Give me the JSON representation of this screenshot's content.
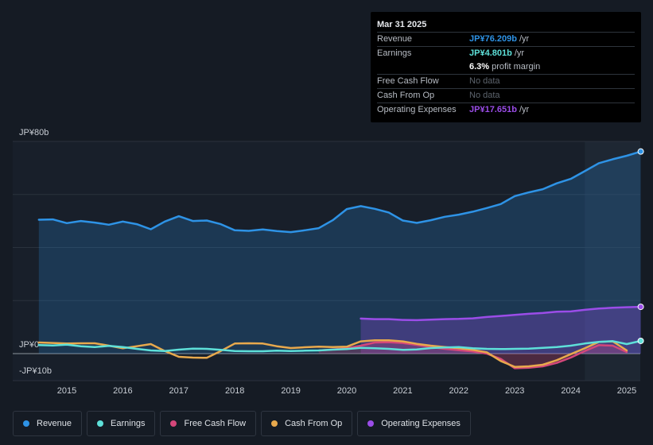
{
  "tooltip": {
    "date": "Mar 31 2025",
    "rows": [
      {
        "label": "Revenue",
        "value": "JP¥76.209b",
        "unit": "/yr",
        "color": "#2e93e6"
      },
      {
        "label": "Earnings",
        "value": "JP¥4.801b",
        "unit": "/yr",
        "color": "#5ee0d9"
      },
      {
        "label": "",
        "value": "6.3%",
        "unit": "profit margin",
        "color": "#ffffff"
      },
      {
        "label": "Free Cash Flow",
        "value": "No data",
        "unit": "",
        "color": "#5d646d"
      },
      {
        "label": "Cash From Op",
        "value": "No data",
        "unit": "",
        "color": "#5d646d"
      },
      {
        "label": "Operating Expenses",
        "value": "JP¥17.651b",
        "unit": "/yr",
        "color": "#9b4de8"
      }
    ]
  },
  "legend": [
    {
      "label": "Revenue",
      "color": "#2e93e6"
    },
    {
      "label": "Earnings",
      "color": "#5ee0d9"
    },
    {
      "label": "Free Cash Flow",
      "color": "#d4477a"
    },
    {
      "label": "Cash From Op",
      "color": "#e8a94d"
    },
    {
      "label": "Operating Expenses",
      "color": "#9b4de8"
    }
  ],
  "chart_data": {
    "type": "line",
    "title": "",
    "xlabel": "",
    "ylabel": "",
    "ylim": [
      -10,
      80
    ],
    "xlim": [
      2014.5,
      2025.25
    ],
    "y_tick_labels": [
      {
        "value": 80,
        "label": "JP¥80b"
      },
      {
        "value": 0,
        "label": "JP¥0"
      },
      {
        "value": -10,
        "label": "-JP¥10b"
      }
    ],
    "x_ticks": [
      2015,
      2016,
      2017,
      2018,
      2019,
      2020,
      2021,
      2022,
      2023,
      2024,
      2025
    ],
    "x_tick_labels": [
      "2015",
      "2016",
      "2017",
      "2018",
      "2019",
      "2020",
      "2021",
      "2022",
      "2023",
      "2024",
      "2025"
    ],
    "highlight_from": 2024.25,
    "series": [
      {
        "name": "Revenue",
        "color": "#2e93e6",
        "fill": true,
        "x": [
          2014.5,
          2014.75,
          2015.0,
          2015.25,
          2015.5,
          2015.75,
          2016.0,
          2016.25,
          2016.5,
          2016.75,
          2017.0,
          2017.25,
          2017.5,
          2017.75,
          2018.0,
          2018.25,
          2018.5,
          2018.75,
          2019.0,
          2019.25,
          2019.5,
          2019.75,
          2020.0,
          2020.25,
          2020.5,
          2020.75,
          2021.0,
          2021.25,
          2021.5,
          2021.75,
          2022.0,
          2022.25,
          2022.5,
          2022.75,
          2023.0,
          2023.25,
          2023.5,
          2023.75,
          2024.0,
          2024.25,
          2024.5,
          2024.75,
          2025.0,
          2025.25
        ],
        "values": [
          50.5,
          50.6,
          49.2,
          50.0,
          49.4,
          48.6,
          49.8,
          48.8,
          46.9,
          49.8,
          51.8,
          50.0,
          50.2,
          48.8,
          46.5,
          46.3,
          46.8,
          46.2,
          45.8,
          46.5,
          47.3,
          50.3,
          54.5,
          55.6,
          54.6,
          53.2,
          50.2,
          49.3,
          50.3,
          51.6,
          52.4,
          53.5,
          54.9,
          56.4,
          59.4,
          60.8,
          62.0,
          64.2,
          65.9,
          68.8,
          71.8,
          73.3,
          74.6,
          76.2
        ]
      },
      {
        "name": "Operating Expenses",
        "color": "#9b4de8",
        "fill": true,
        "x": [
          2020.25,
          2020.5,
          2020.75,
          2021.0,
          2021.25,
          2021.5,
          2021.75,
          2022.0,
          2022.25,
          2022.5,
          2022.75,
          2023.0,
          2023.25,
          2023.5,
          2023.75,
          2024.0,
          2024.25,
          2024.5,
          2024.75,
          2025.0,
          2025.25
        ],
        "values": [
          13.2,
          13.0,
          13.0,
          12.7,
          12.6,
          12.8,
          13.0,
          13.1,
          13.3,
          13.8,
          14.2,
          14.6,
          15.0,
          15.3,
          15.8,
          15.9,
          16.5,
          17.0,
          17.3,
          17.5,
          17.65
        ]
      },
      {
        "name": "Free Cash Flow",
        "color": "#d4477a",
        "fill": true,
        "x": [
          2019.5,
          2019.75,
          2020.0,
          2020.25,
          2020.5,
          2020.75,
          2021.0,
          2021.25,
          2021.5,
          2021.75,
          2022.0,
          2022.25,
          2022.5,
          2022.75,
          2023.0,
          2023.25,
          2023.5,
          2023.75,
          2024.0,
          2024.25,
          2024.5,
          2024.75,
          2025.0
        ],
        "values": [
          1.2,
          1.6,
          2.0,
          3.0,
          4.2,
          4.3,
          4.0,
          3.3,
          2.5,
          1.8,
          1.3,
          0.8,
          0.0,
          -2.0,
          -5.5,
          -5.3,
          -4.8,
          -3.5,
          -1.5,
          1.0,
          3.2,
          3.0,
          0.6
        ]
      },
      {
        "name": "Cash From Op",
        "color": "#e8a94d",
        "fill": false,
        "x": [
          2014.5,
          2014.75,
          2015.0,
          2015.25,
          2015.5,
          2015.75,
          2016.0,
          2016.25,
          2016.5,
          2016.75,
          2017.0,
          2017.25,
          2017.5,
          2017.75,
          2018.0,
          2018.25,
          2018.5,
          2018.75,
          2019.0,
          2019.25,
          2019.5,
          2019.75,
          2020.0,
          2020.25,
          2020.5,
          2020.75,
          2021.0,
          2021.25,
          2021.5,
          2021.75,
          2022.0,
          2022.25,
          2022.5,
          2022.75,
          2023.0,
          2023.25,
          2023.5,
          2023.75,
          2024.0,
          2024.25,
          2024.5,
          2024.75,
          2025.0
        ],
        "values": [
          4.2,
          4.0,
          3.8,
          3.9,
          3.9,
          3.0,
          2.0,
          2.8,
          3.6,
          1.0,
          -1.2,
          -1.5,
          -1.6,
          1.0,
          3.8,
          3.9,
          3.8,
          2.8,
          2.1,
          2.4,
          2.6,
          2.5,
          2.6,
          4.6,
          5.0,
          5.0,
          4.6,
          3.7,
          3.0,
          2.5,
          2.0,
          1.4,
          0.5,
          -2.8,
          -5.0,
          -4.8,
          -4.2,
          -2.5,
          -0.2,
          2.0,
          4.4,
          4.6,
          1.2
        ]
      },
      {
        "name": "Earnings",
        "color": "#5ee0d9",
        "fill": false,
        "x": [
          2014.5,
          2014.75,
          2015.0,
          2015.25,
          2015.5,
          2015.75,
          2016.0,
          2016.25,
          2016.5,
          2016.75,
          2017.0,
          2017.25,
          2017.5,
          2017.75,
          2018.0,
          2018.25,
          2018.5,
          2018.75,
          2019.0,
          2019.25,
          2019.5,
          2019.75,
          2020.0,
          2020.25,
          2020.5,
          2020.75,
          2021.0,
          2021.25,
          2021.5,
          2021.75,
          2022.0,
          2022.25,
          2022.5,
          2022.75,
          2023.0,
          2023.25,
          2023.5,
          2023.75,
          2024.0,
          2024.25,
          2024.5,
          2024.75,
          2025.0,
          2025.25
        ],
        "values": [
          3.2,
          3.1,
          3.4,
          2.8,
          2.5,
          2.9,
          2.5,
          1.8,
          1.2,
          1.0,
          1.5,
          1.9,
          1.8,
          1.4,
          1.0,
          0.9,
          0.9,
          1.1,
          1.0,
          1.1,
          1.2,
          1.5,
          1.7,
          2.2,
          2.0,
          1.8,
          1.4,
          1.6,
          2.1,
          2.3,
          2.5,
          2.0,
          1.8,
          1.7,
          1.8,
          1.9,
          2.2,
          2.5,
          3.0,
          3.8,
          4.4,
          4.7,
          3.6,
          4.8
        ]
      }
    ]
  }
}
